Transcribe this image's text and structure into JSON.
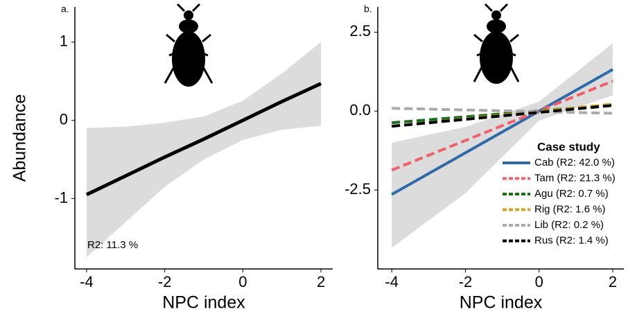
{
  "chart_data": [
    {
      "type": "line",
      "panel_label": "a.",
      "xlabel": "NPC index",
      "ylabel": "Abundance",
      "xlim": [
        -4.3,
        2.3
      ],
      "ylim": [
        -1.9,
        1.45
      ],
      "xticks": [
        -4,
        -2,
        0,
        2
      ],
      "yticks": [
        -1,
        0,
        1
      ],
      "x": [
        -4,
        -3,
        -2,
        -1,
        0,
        1,
        2
      ],
      "values": [
        -0.95,
        -0.71,
        -0.47,
        -0.24,
        0,
        0.24,
        0.47
      ],
      "color": "#000000",
      "band": {
        "x": [
          -4,
          -3,
          -2,
          -1,
          0,
          1,
          2
        ],
        "lower": [
          -1.75,
          -1.3,
          -0.85,
          -0.5,
          -0.25,
          -0.12,
          -0.07
        ],
        "upper": [
          -0.1,
          -0.08,
          -0.03,
          0.05,
          0.25,
          0.6,
          1.0
        ],
        "color": "#dcdcdc"
      },
      "annotation": "R2: 11.3 %"
    },
    {
      "type": "line",
      "panel_label": "b.",
      "xlabel": "NPC index",
      "xlim": [
        -4.38,
        2.3
      ],
      "ylim": [
        -5,
        3.3
      ],
      "xticks": [
        -4,
        -2,
        0,
        2
      ],
      "yticks": [
        -2.5,
        {
          "value": 0,
          "label": "0.0"
        },
        2.5
      ],
      "x": [
        -4,
        2
      ],
      "band": {
        "x": [
          -4,
          -2,
          0,
          2
        ],
        "lower": [
          -4.33,
          -2.6,
          -0.3,
          0.5
        ],
        "upper": [
          -1.0,
          -0.5,
          0.3,
          2.15
        ],
        "color": "#dcdcdc"
      },
      "legend_title": "Case study",
      "legend": "lower right",
      "series": [
        {
          "name": "Cab (R2: 42.0 %)",
          "color": "#2f6aa8",
          "dashed": false,
          "values": [
            -2.64,
            1.32
          ]
        },
        {
          "name": "Tam (R2: 21.3 %)",
          "color": "#f0606a",
          "dashed": true,
          "values": [
            -1.87,
            0.95
          ]
        },
        {
          "name": "Agu (R2: 0.7 %)",
          "color": "#1a6e1a",
          "dashed": true,
          "values": [
            -0.37,
            0.2
          ]
        },
        {
          "name": "Rig (R2: 1.6 %)",
          "color": "#d4a020",
          "dashed": true,
          "values": [
            -0.48,
            0.22
          ]
        },
        {
          "name": "Lib (R2: 0.2 %)",
          "color": "#aaaaaa",
          "dashed": true,
          "values": [
            0.09,
            -0.07
          ]
        },
        {
          "name": "Rus (R2: 1.4 %)",
          "color": "#000000",
          "dashed": true,
          "values": [
            -0.48,
            0.18
          ]
        }
      ]
    }
  ]
}
